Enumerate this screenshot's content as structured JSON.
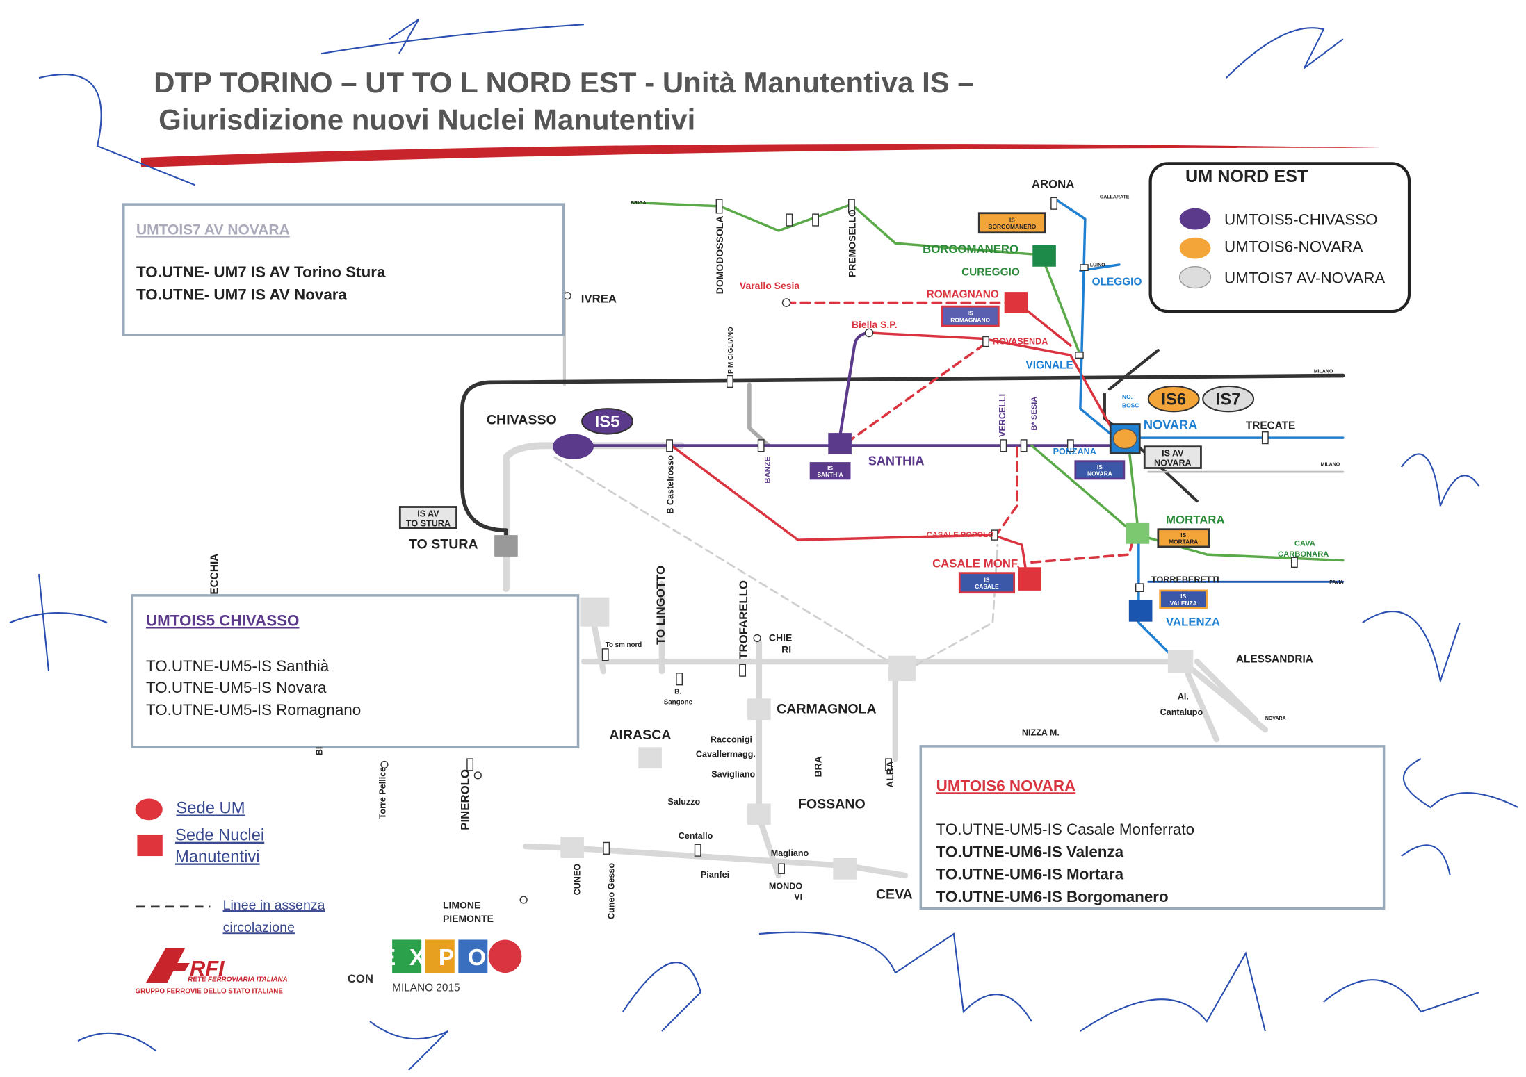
{
  "header": {
    "title": [
      "DTP TORINO – UT TO L NORD EST - Unità Manutentiva IS –",
      "Giurisdizione  nuovi Nuclei Manutentivi"
    ]
  },
  "panels": [
    {
      "title": "UMTOIS7 AV NOVARA",
      "items": [
        "TO.UTNE- UM7 IS AV Torino Stura",
        "TO.UTNE- UM7 IS AV Novara"
      ]
    },
    {
      "title": "UMTOIS5 CHIVASSO",
      "items": [
        "TO.UTNE-UM5-IS Santhià",
        "TO.UTNE-UM5-IS Novara",
        "TO.UTNE-UM5-IS Romagnano"
      ]
    },
    {
      "title": "UMTOIS6 NOVARA",
      "items": [
        "TO.UTNE-UM5-IS Casale Monferrato",
        "TO.UTNE-UM6-IS Valenza",
        "TO.UTNE-UM6-IS Mortara",
        "TO.UTNE-UM6-IS Borgomanero"
      ]
    }
  ],
  "um_legend": {
    "title": "UM  NORD EST",
    "entries": [
      "UMTOIS5-CHIVASSO",
      "UMTOIS6-NOVARA",
      "UMTOIS7 AV-NOVARA"
    ]
  },
  "map": {
    "stations": [
      "ARONA",
      "BORGOMANERO",
      "CUREGGIO",
      "OLEGGIO",
      "Varallo Sesia",
      "ROMAGNANO",
      "Biella S.P.",
      "ROVASENDA",
      "VIGNALE",
      "IVREA",
      "CHIVASSO",
      "NOVARA",
      "TRECATE",
      "SANTHIA",
      "PONZANA",
      "MORTARA",
      "CAVA",
      "CARBONARA",
      "CASALE POPOLO",
      "CASALE MONF.",
      "TORREBERETTI",
      "VALENZA",
      "ALESSANDRIA",
      "TO STURA",
      "TO LINGOTTO",
      "TROFARELLO",
      "CHIE",
      "RI",
      "CARMAGNOLA",
      "AIRASCA",
      "NIZZA M.",
      "FOSSANO",
      "CEVA",
      "LIMONE",
      "PIEMONTE",
      "PINEROLO",
      "Torre Pellice",
      "CUNEO",
      "Cuneo Gesso",
      "Racconigi",
      "Cavallermagg.",
      "Savigliano",
      "Saluzzo",
      "Centallo",
      "Magliano",
      "Pianfei",
      "MONDO",
      "VI",
      "DOMODOSSOLA",
      "PREMOSELLO",
      "B Castelrosso",
      "BANZE",
      "VERCELLI",
      "B* SESIA",
      "P M CIGLIANO",
      "To sm nord",
      "B.",
      "Sangone",
      "BRA",
      "ALBA",
      "ECCHIA",
      "BI",
      "Al.",
      "Cantalupo",
      "BRIGA",
      "GALLARATE",
      "LUINO",
      "MILANO",
      "MILANO",
      "PAVIA",
      "NOVARA",
      "NO.",
      "BOSC"
    ],
    "badges": [
      "IS5",
      "IS6",
      "IS7"
    ],
    "nuclei": [
      {
        "top": "IS",
        "bottom": "BORGOMANERO"
      },
      {
        "top": "IS",
        "bottom": "ROMAGNANO"
      },
      {
        "top": "IS",
        "bottom": "SANTHIA"
      },
      {
        "top": "IS",
        "bottom": "NOVARA"
      },
      {
        "top": "IS AV",
        "bottom": "NOVARA"
      },
      {
        "top": "IS AV",
        "bottom": "TO STURA"
      },
      {
        "top": "IS",
        "bottom": "MORTARA"
      },
      {
        "top": "IS",
        "bottom": "CASALE"
      },
      {
        "top": "IS",
        "bottom": "VALENZA"
      }
    ]
  },
  "legend": {
    "sede_um": "Sede UM",
    "sede_nuclei": [
      "Sede Nuclei",
      "Manutentivi"
    ],
    "dashed": [
      "Linee in assenza",
      "circolazione"
    ]
  },
  "footer": {
    "rfi": "RFI",
    "rfi_name": "RETE FERROVIARIA ITALIANA",
    "rfi_group": "GRUPPO FERROVIE DELLO STATO ITALIANE",
    "con": "CON",
    "expo": "EXPO",
    "expo_city": "MILANO 2015"
  }
}
